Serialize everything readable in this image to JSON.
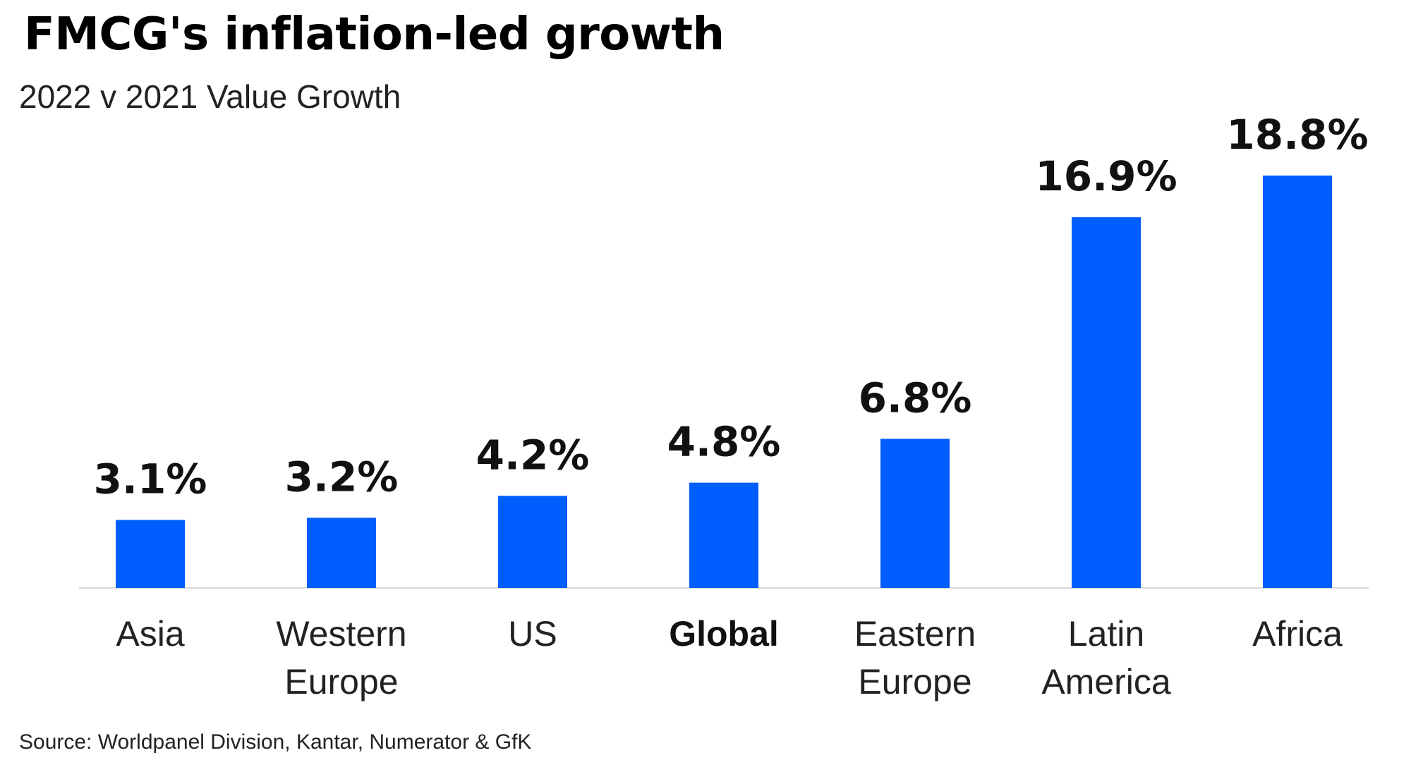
{
  "title": "FMCG's inflation-led growth",
  "subtitle": "2022 v 2021 Value Growth",
  "source": "Source: Worldpanel Division, Kantar, Numerator & GfK",
  "colors": {
    "bar": "#005EFF",
    "axis": "#D9D9D9",
    "text": "#111111"
  },
  "chart_data": {
    "type": "bar",
    "categories": [
      "Asia",
      "Western Europe",
      "US",
      "Global",
      "Eastern Europe",
      "Latin America",
      "Africa"
    ],
    "category_lines": [
      [
        "Asia"
      ],
      [
        "Western",
        "Europe"
      ],
      [
        "US"
      ],
      [
        "Global"
      ],
      [
        "Eastern",
        "Europe"
      ],
      [
        "Latin",
        "America"
      ],
      [
        "Africa"
      ]
    ],
    "values": [
      3.1,
      3.2,
      4.2,
      4.8,
      6.8,
      16.9,
      18.8
    ],
    "value_labels": [
      "3.1%",
      "3.2%",
      "4.2%",
      "4.8%",
      "6.8%",
      "16.9%",
      "18.8%"
    ],
    "highlighted_category": "Global",
    "unit": "%",
    "ylim": [
      0,
      18.8
    ],
    "grid": false,
    "legend": "none"
  }
}
